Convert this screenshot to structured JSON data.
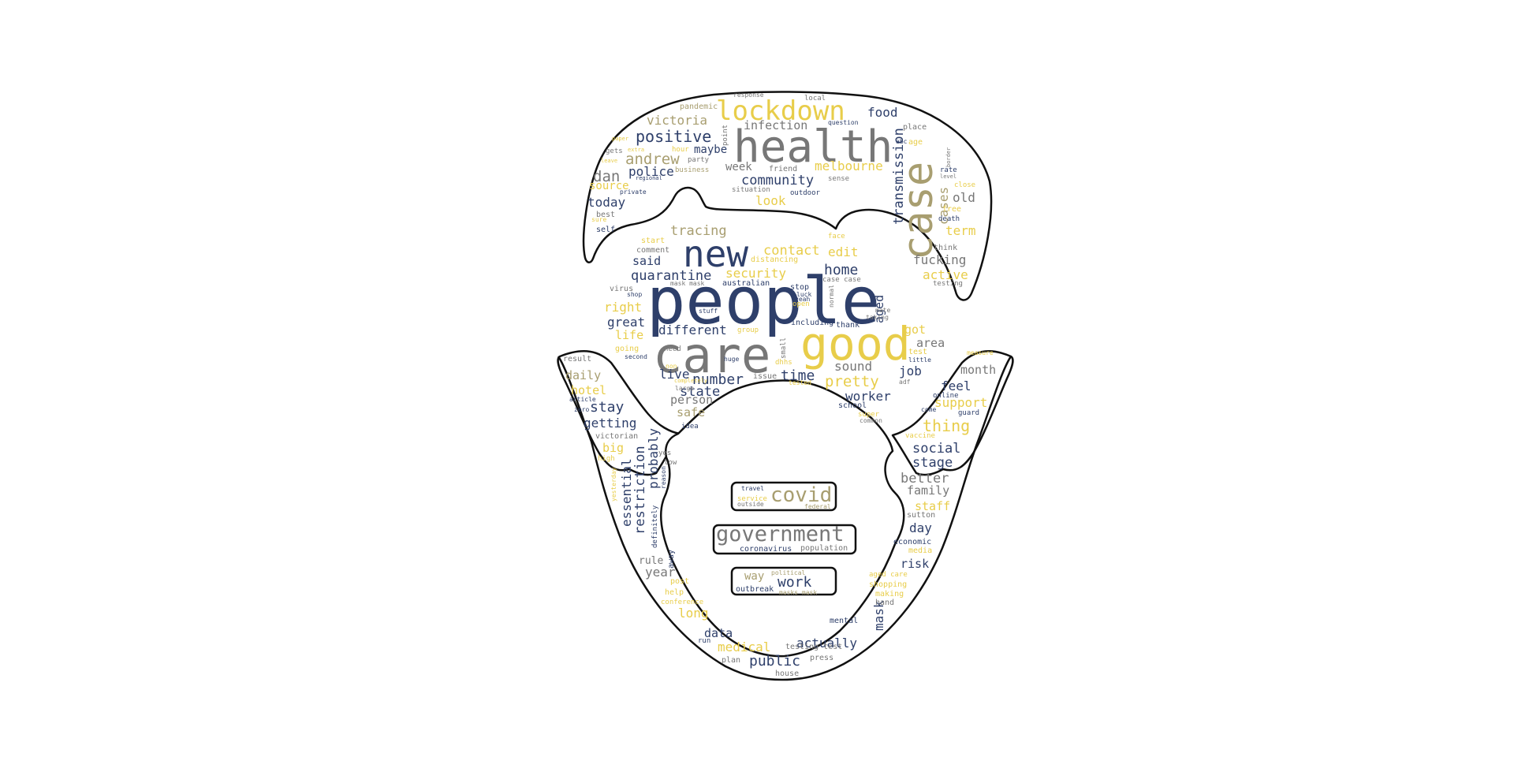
{
  "colors": {
    "navy": "#2e3f6a",
    "gray": "#777777",
    "khaki": "#a89e70",
    "yellow": "#e8cd4a",
    "outline": "#111111",
    "background": "#ffffff"
  },
  "words": [
    {
      "text": "people",
      "color": "navy"
    },
    {
      "text": "care",
      "color": "gray"
    },
    {
      "text": "good",
      "color": "yellow"
    },
    {
      "text": "health",
      "color": "gray"
    },
    {
      "text": "case",
      "color": "khaki"
    },
    {
      "text": "new",
      "color": "navy"
    },
    {
      "text": "lockdown",
      "color": "yellow"
    },
    {
      "text": "government",
      "color": "gray"
    },
    {
      "text": "covid",
      "color": "khaki"
    },
    {
      "text": "work",
      "color": "navy"
    },
    {
      "text": "transmission",
      "color": "navy"
    },
    {
      "text": "positive",
      "color": "navy"
    },
    {
      "text": "andrew",
      "color": "khaki"
    },
    {
      "text": "victoria",
      "color": "khaki"
    },
    {
      "text": "community",
      "color": "navy"
    },
    {
      "text": "melbourne",
      "color": "yellow"
    },
    {
      "text": "infection",
      "color": "gray"
    },
    {
      "text": "police",
      "color": "navy"
    },
    {
      "text": "dan",
      "color": "gray"
    },
    {
      "text": "source",
      "color": "yellow"
    },
    {
      "text": "today",
      "color": "navy"
    },
    {
      "text": "week",
      "color": "gray"
    },
    {
      "text": "maybe",
      "color": "navy"
    },
    {
      "text": "look",
      "color": "yellow"
    },
    {
      "text": "food",
      "color": "navy"
    },
    {
      "text": "cases",
      "color": "khaki"
    },
    {
      "text": "old",
      "color": "gray"
    },
    {
      "text": "term",
      "color": "yellow"
    },
    {
      "text": "fucking",
      "color": "gray"
    },
    {
      "text": "active",
      "color": "yellow"
    },
    {
      "text": "contact",
      "color": "yellow"
    },
    {
      "text": "edit",
      "color": "yellow"
    },
    {
      "text": "tracing",
      "color": "khaki"
    },
    {
      "text": "quarantine",
      "color": "navy"
    },
    {
      "text": "security",
      "color": "yellow"
    },
    {
      "text": "home",
      "color": "navy"
    },
    {
      "text": "said",
      "color": "navy"
    },
    {
      "text": "right",
      "color": "yellow"
    },
    {
      "text": "great",
      "color": "navy"
    },
    {
      "text": "life",
      "color": "yellow"
    },
    {
      "text": "different",
      "color": "navy"
    },
    {
      "text": "aged",
      "color": "navy"
    },
    {
      "text": "got",
      "color": "yellow"
    },
    {
      "text": "area",
      "color": "gray"
    },
    {
      "text": "pretty",
      "color": "yellow"
    },
    {
      "text": "number",
      "color": "navy"
    },
    {
      "text": "time",
      "color": "navy"
    },
    {
      "text": "sound",
      "color": "gray"
    },
    {
      "text": "job",
      "color": "navy"
    },
    {
      "text": "month",
      "color": "gray"
    },
    {
      "text": "live",
      "color": "navy"
    },
    {
      "text": "state",
      "color": "navy"
    },
    {
      "text": "person",
      "color": "gray"
    },
    {
      "text": "safe",
      "color": "khaki"
    },
    {
      "text": "worker",
      "color": "navy"
    },
    {
      "text": "feel",
      "color": "navy"
    },
    {
      "text": "support",
      "color": "yellow"
    },
    {
      "text": "thing",
      "color": "yellow"
    },
    {
      "text": "social",
      "color": "navy"
    },
    {
      "text": "stage",
      "color": "navy"
    },
    {
      "text": "better",
      "color": "gray"
    },
    {
      "text": "family",
      "color": "gray"
    },
    {
      "text": "staff",
      "color": "yellow"
    },
    {
      "text": "day",
      "color": "navy"
    },
    {
      "text": "risk",
      "color": "navy"
    },
    {
      "text": "daily",
      "color": "khaki"
    },
    {
      "text": "hotel",
      "color": "yellow"
    },
    {
      "text": "stay",
      "color": "navy"
    },
    {
      "text": "getting",
      "color": "navy"
    },
    {
      "text": "big",
      "color": "yellow"
    },
    {
      "text": "essential",
      "color": "navy"
    },
    {
      "text": "restriction",
      "color": "navy"
    },
    {
      "text": "probably",
      "color": "navy"
    },
    {
      "text": "year",
      "color": "gray"
    },
    {
      "text": "rule",
      "color": "gray"
    },
    {
      "text": "long",
      "color": "yellow"
    },
    {
      "text": "data",
      "color": "navy"
    },
    {
      "text": "medical",
      "color": "yellow"
    },
    {
      "text": "public",
      "color": "navy"
    },
    {
      "text": "actually",
      "color": "navy"
    },
    {
      "text": "mask",
      "color": "navy"
    },
    {
      "text": "way",
      "color": "khaki"
    },
    {
      "text": "coronavirus",
      "color": "navy"
    },
    {
      "text": "population",
      "color": "gray"
    },
    {
      "text": "outbreak",
      "color": "navy"
    },
    {
      "text": "masks mask",
      "color": "khaki"
    },
    {
      "text": "political",
      "color": "khaki"
    },
    {
      "text": "travel",
      "color": "navy"
    },
    {
      "text": "service",
      "color": "yellow"
    },
    {
      "text": "outside",
      "color": "gray"
    },
    {
      "text": "federal",
      "color": "khaki"
    },
    {
      "text": "pandemic",
      "color": "khaki"
    },
    {
      "text": "response",
      "color": "gray"
    },
    {
      "text": "local",
      "color": "gray"
    },
    {
      "text": "question",
      "color": "navy"
    },
    {
      "text": "point",
      "color": "gray"
    },
    {
      "text": "hour",
      "color": "yellow"
    },
    {
      "text": "party",
      "color": "gray"
    },
    {
      "text": "business",
      "color": "khaki"
    },
    {
      "text": "friend",
      "color": "gray"
    },
    {
      "text": "sense",
      "color": "gray"
    },
    {
      "text": "situation",
      "color": "gray"
    },
    {
      "text": "outdoor",
      "color": "navy"
    },
    {
      "text": "place",
      "color": "gray"
    },
    {
      "text": "abc",
      "color": "navy"
    },
    {
      "text": "age",
      "color": "yellow"
    },
    {
      "text": "rate",
      "color": "navy"
    },
    {
      "text": "level",
      "color": "gray"
    },
    {
      "text": "close",
      "color": "yellow"
    },
    {
      "text": "free",
      "color": "yellow"
    },
    {
      "text": "death",
      "color": "navy"
    },
    {
      "text": "border",
      "color": "gray"
    },
    {
      "text": "think",
      "color": "gray"
    },
    {
      "text": "testing",
      "color": "gray"
    },
    {
      "text": "paper",
      "color": "yellow"
    },
    {
      "text": "gets",
      "color": "gray"
    },
    {
      "text": "extra",
      "color": "yellow"
    },
    {
      "text": "leave",
      "color": "yellow"
    },
    {
      "text": "regional",
      "color": "navy"
    },
    {
      "text": "private",
      "color": "navy"
    },
    {
      "text": "best",
      "color": "gray"
    },
    {
      "text": "sure",
      "color": "yellow"
    },
    {
      "text": "self",
      "color": "navy"
    },
    {
      "text": "start",
      "color": "yellow"
    },
    {
      "text": "comment",
      "color": "gray"
    },
    {
      "text": "distancing",
      "color": "yellow"
    },
    {
      "text": "australian",
      "color": "navy"
    },
    {
      "text": "mask mask",
      "color": "gray"
    },
    {
      "text": "virus",
      "color": "gray"
    },
    {
      "text": "shop",
      "color": "navy"
    },
    {
      "text": "stuff",
      "color": "navy"
    },
    {
      "text": "open",
      "color": "yellow"
    },
    {
      "text": "stop",
      "color": "navy"
    },
    {
      "text": "luck",
      "color": "navy"
    },
    {
      "text": "yeah",
      "color": "navy"
    },
    {
      "text": "face",
      "color": "yellow"
    },
    {
      "text": "case case",
      "color": "gray"
    },
    {
      "text": "normal",
      "color": "gray"
    },
    {
      "text": "including",
      "color": "navy"
    },
    {
      "text": "thank",
      "color": "navy"
    },
    {
      "text": "group",
      "color": "yellow"
    },
    {
      "text": "small",
      "color": "gray"
    },
    {
      "text": "need",
      "color": "gray"
    },
    {
      "text": "going",
      "color": "yellow"
    },
    {
      "text": "second",
      "color": "navy"
    },
    {
      "text": "non",
      "color": "yellow"
    },
    {
      "text": "huge",
      "color": "navy"
    },
    {
      "text": "dhhs",
      "color": "yellow"
    },
    {
      "text": "issue",
      "color": "gray"
    },
    {
      "text": "tested",
      "color": "yellow"
    },
    {
      "text": "completely",
      "color": "yellow"
    },
    {
      "text": "large",
      "color": "gray"
    },
    {
      "text": "idea",
      "color": "navy"
    },
    {
      "text": "mate",
      "color": "gray"
    },
    {
      "text": "taking",
      "color": "gray"
    },
    {
      "text": "test",
      "color": "yellow"
    },
    {
      "text": "little",
      "color": "navy"
    },
    {
      "text": "adf",
      "color": "gray"
    },
    {
      "text": "measure",
      "color": "yellow"
    },
    {
      "text": "result",
      "color": "gray"
    },
    {
      "text": "article",
      "color": "navy"
    },
    {
      "text": "zero",
      "color": "navy"
    },
    {
      "text": "victorian",
      "color": "gray"
    },
    {
      "text": "high",
      "color": "yellow"
    },
    {
      "text": "yesterday",
      "color": "yellow"
    },
    {
      "text": "low",
      "color": "gray"
    },
    {
      "text": "yes",
      "color": "gray"
    },
    {
      "text": "reason",
      "color": "navy"
    },
    {
      "text": "definitely",
      "color": "navy"
    },
    {
      "text": "away",
      "color": "navy"
    },
    {
      "text": "post",
      "color": "yellow"
    },
    {
      "text": "help",
      "color": "yellow"
    },
    {
      "text": "conference",
      "color": "yellow"
    },
    {
      "text": "run",
      "color": "navy"
    },
    {
      "text": "plan",
      "color": "gray"
    },
    {
      "text": "house",
      "color": "gray"
    },
    {
      "text": "press",
      "color": "gray"
    },
    {
      "text": "testing test",
      "color": "gray"
    },
    {
      "text": "mental",
      "color": "navy"
    },
    {
      "text": "hand",
      "color": "gray"
    },
    {
      "text": "making",
      "color": "yellow"
    },
    {
      "text": "shopping",
      "color": "yellow"
    },
    {
      "text": "aged care",
      "color": "yellow"
    },
    {
      "text": "media",
      "color": "yellow"
    },
    {
      "text": "economic",
      "color": "navy"
    },
    {
      "text": "sutton",
      "color": "gray"
    },
    {
      "text": "vaccine",
      "color": "yellow"
    },
    {
      "text": "guard",
      "color": "navy"
    },
    {
      "text": "online",
      "color": "navy"
    },
    {
      "text": "come",
      "color": "navy"
    },
    {
      "text": "super",
      "color": "yellow"
    },
    {
      "text": "common",
      "color": "gray"
    },
    {
      "text": "school",
      "color": "navy"
    }
  ]
}
